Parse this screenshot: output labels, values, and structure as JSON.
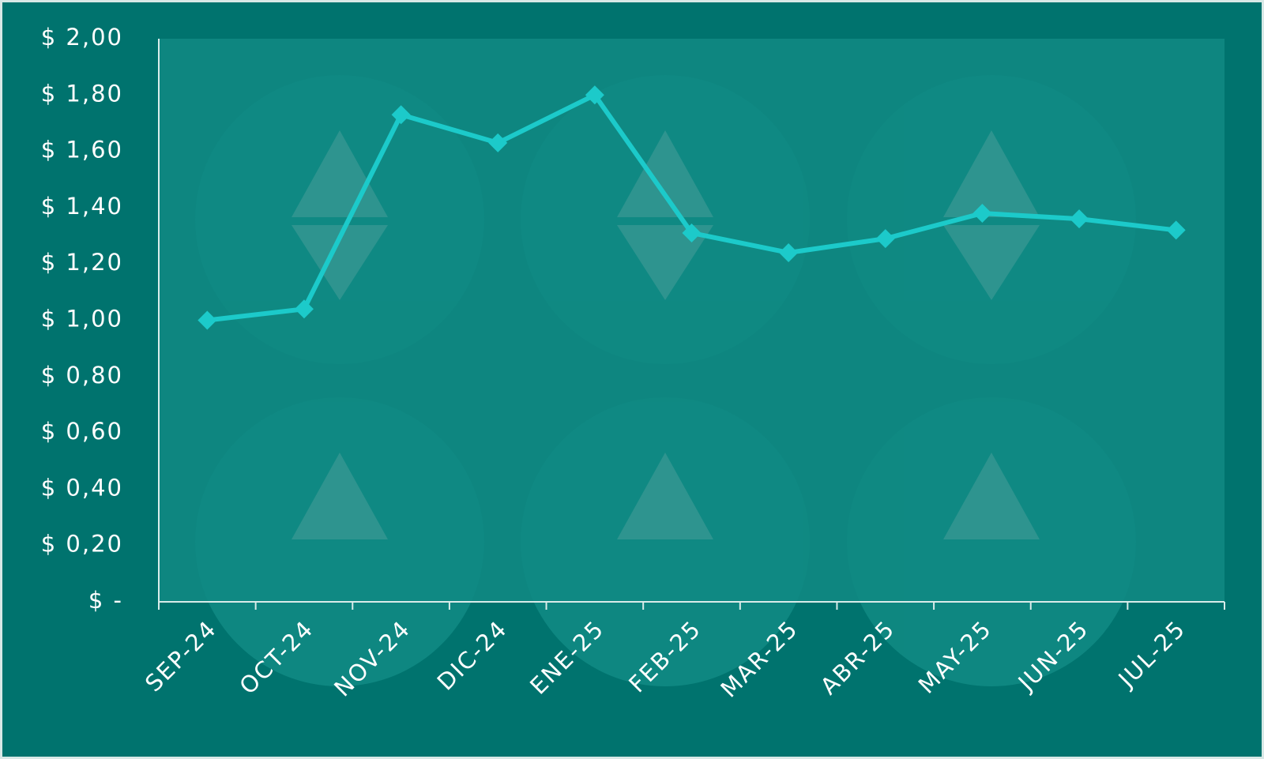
{
  "chart_data": {
    "type": "line",
    "categories": [
      "SEP-24",
      "OCT-24",
      "NOV-24",
      "DIC-24",
      "ENE-25",
      "FEB-25",
      "MAR-25",
      "ABR-25",
      "MAY-25",
      "JUN-25",
      "JUL-25"
    ],
    "values": [
      1.0,
      1.04,
      1.73,
      1.63,
      1.8,
      1.31,
      1.24,
      1.29,
      1.38,
      1.36,
      1.32
    ],
    "color": "#1ccaca",
    "ylim": [
      0,
      2
    ],
    "yticks": [
      {
        "value": 0,
        "label": "$ -"
      },
      {
        "value": 0.2,
        "label": "$ 0,20"
      },
      {
        "value": 0.4,
        "label": "$ 0,40"
      },
      {
        "value": 0.6,
        "label": "$ 0,60"
      },
      {
        "value": 0.8,
        "label": "$ 0,80"
      },
      {
        "value": 1,
        "label": "$ 1,00"
      },
      {
        "value": 1.2,
        "label": "$ 1,20"
      },
      {
        "value": 1.4,
        "label": "$ 1,40"
      },
      {
        "value": 1.6,
        "label": "$ 1,60"
      },
      {
        "value": 1.8,
        "label": "$ 1,80"
      },
      {
        "value": 2,
        "label": "$ 2,00"
      }
    ],
    "grid": false
  }
}
